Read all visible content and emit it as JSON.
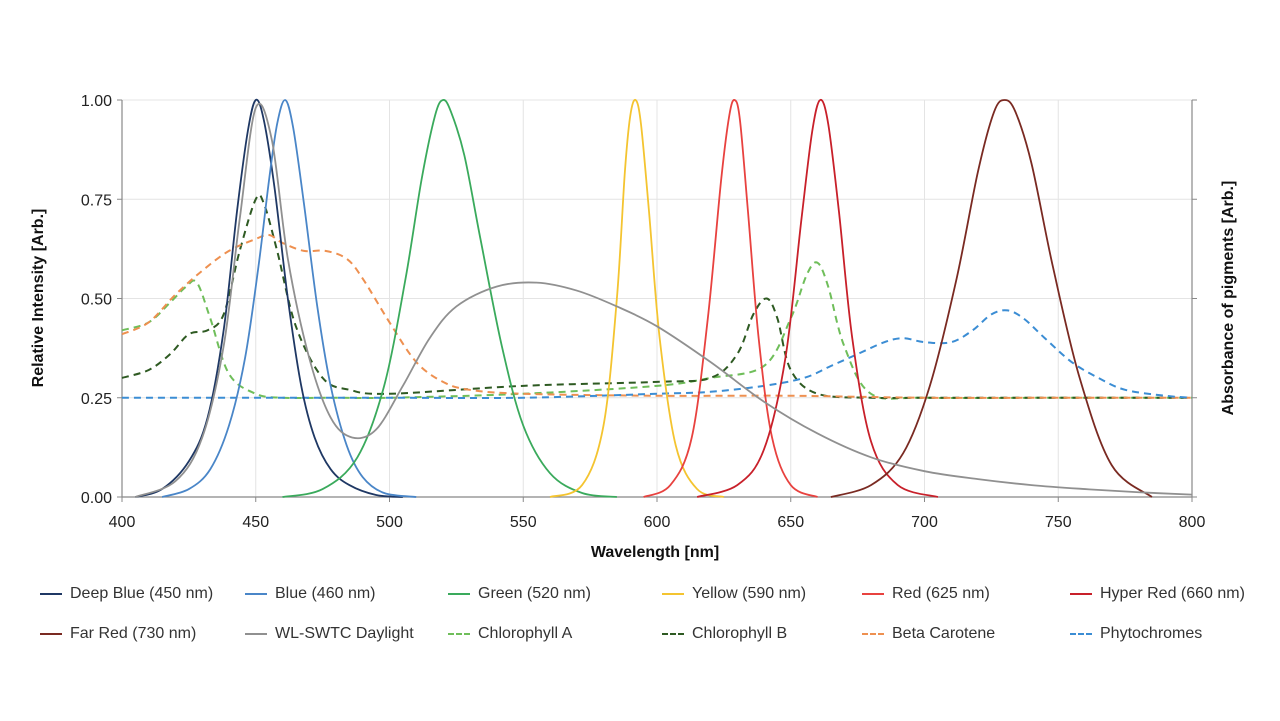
{
  "chart_data": {
    "type": "line",
    "title": "",
    "xlabel": "Wavelength [nm]",
    "ylabel": "Relative Intensity [Arb.]",
    "y2label": "Absorbance of pigments [Arb.]",
    "xlim": [
      400,
      800
    ],
    "ylim": [
      0,
      1
    ],
    "x_ticks": [
      400,
      450,
      500,
      550,
      600,
      650,
      700,
      750,
      800
    ],
    "x_tick_labels": [
      "400",
      "450",
      "500",
      "550",
      "600",
      "650",
      "700",
      "750",
      "800"
    ],
    "y_ticks": [
      0,
      0.25,
      0.5,
      0.75,
      1
    ],
    "y_tick_labels": [
      "0.00",
      "0.25",
      "0.50",
      "0.75",
      "1.00"
    ],
    "grid": true,
    "legend_position": "bottom",
    "series": [
      {
        "name": "Deep Blue (450 nm)",
        "color": "#1f3864",
        "dashed": false,
        "x": [
          405,
          415,
          425,
          432,
          438,
          443,
          447,
          450,
          453,
          457,
          462,
          467,
          472,
          478,
          485,
          495,
          505
        ],
        "y": [
          0,
          0.02,
          0.09,
          0.2,
          0.42,
          0.72,
          0.92,
          1.0,
          0.95,
          0.78,
          0.5,
          0.28,
          0.15,
          0.07,
          0.03,
          0.005,
          0
        ]
      },
      {
        "name": "Blue (460 nm)",
        "color": "#4a86c8",
        "dashed": false,
        "x": [
          415,
          425,
          433,
          440,
          446,
          451,
          455,
          458,
          461,
          464,
          468,
          473,
          478,
          484,
          490,
          498,
          510
        ],
        "y": [
          0,
          0.02,
          0.07,
          0.18,
          0.35,
          0.58,
          0.8,
          0.94,
          1.0,
          0.93,
          0.74,
          0.48,
          0.28,
          0.13,
          0.05,
          0.01,
          0
        ]
      },
      {
        "name": "Green (520 nm)",
        "color": "#3aaa5c",
        "dashed": false,
        "x": [
          460,
          475,
          488,
          498,
          506,
          512,
          517,
          520,
          523,
          528,
          534,
          542,
          550,
          560,
          572,
          585
        ],
        "y": [
          0,
          0.02,
          0.1,
          0.28,
          0.55,
          0.8,
          0.96,
          1.0,
          0.97,
          0.86,
          0.65,
          0.38,
          0.18,
          0.06,
          0.01,
          0
        ]
      },
      {
        "name": "Yellow (590 nm)",
        "color": "#f4c430",
        "dashed": false,
        "x": [
          560,
          572,
          580,
          585,
          588,
          590,
          592,
          594,
          597,
          601,
          607,
          615,
          625
        ],
        "y": [
          0,
          0.03,
          0.18,
          0.5,
          0.82,
          0.96,
          1.0,
          0.94,
          0.72,
          0.4,
          0.13,
          0.02,
          0
        ]
      },
      {
        "name": "Red (625 nm)",
        "color": "#e8423f",
        "dashed": false,
        "x": [
          595,
          605,
          613,
          619,
          624,
          627,
          629,
          631,
          634,
          638,
          643,
          650,
          660
        ],
        "y": [
          0,
          0.03,
          0.15,
          0.45,
          0.8,
          0.96,
          1.0,
          0.95,
          0.72,
          0.4,
          0.15,
          0.03,
          0
        ]
      },
      {
        "name": "Hyper Red (660 nm)",
        "color": "#c8202a",
        "dashed": false,
        "x": [
          615,
          630,
          640,
          648,
          654,
          658,
          661,
          664,
          668,
          673,
          680,
          690,
          705
        ],
        "y": [
          0,
          0.03,
          0.12,
          0.35,
          0.7,
          0.92,
          1.0,
          0.94,
          0.72,
          0.4,
          0.14,
          0.03,
          0
        ]
      },
      {
        "name": "Far Red (730 nm)",
        "color": "#7a2a22",
        "dashed": false,
        "x": [
          665,
          680,
          692,
          702,
          712,
          720,
          726,
          730,
          734,
          740,
          748,
          758,
          770,
          785
        ],
        "y": [
          0,
          0.03,
          0.11,
          0.28,
          0.55,
          0.82,
          0.97,
          1.0,
          0.97,
          0.84,
          0.58,
          0.3,
          0.08,
          0
        ]
      },
      {
        "name": "WL-SWTC Daylight",
        "color": "#909090",
        "dashed": false,
        "x": [
          405,
          420,
          430,
          438,
          444,
          450,
          456,
          462,
          470,
          478,
          486,
          495,
          505,
          515,
          525,
          540,
          555,
          570,
          585,
          600,
          620,
          640,
          660,
          680,
          700,
          720,
          740,
          760,
          780,
          800
        ],
        "y": [
          0,
          0.04,
          0.15,
          0.38,
          0.7,
          0.98,
          0.9,
          0.6,
          0.35,
          0.2,
          0.15,
          0.17,
          0.28,
          0.4,
          0.48,
          0.53,
          0.54,
          0.52,
          0.48,
          0.43,
          0.34,
          0.24,
          0.16,
          0.1,
          0.065,
          0.045,
          0.03,
          0.02,
          0.012,
          0.006
        ]
      },
      {
        "name": "Chlorophyll A",
        "color": "#6fbe5a",
        "dashed": true,
        "x": [
          400,
          410,
          418,
          424,
          428,
          433,
          440,
          450,
          460,
          480,
          500,
          550,
          600,
          620,
          640,
          650,
          656,
          660,
          664,
          670,
          680,
          700,
          750,
          800
        ],
        "y": [
          0.42,
          0.44,
          0.49,
          0.53,
          0.54,
          0.45,
          0.31,
          0.26,
          0.25,
          0.25,
          0.25,
          0.26,
          0.28,
          0.3,
          0.33,
          0.45,
          0.56,
          0.59,
          0.53,
          0.38,
          0.26,
          0.25,
          0.25,
          0.25
        ]
      },
      {
        "name": "Chlorophyll B",
        "color": "#2e5a22",
        "dashed": true,
        "x": [
          400,
          410,
          418,
          425,
          432,
          438,
          444,
          450,
          453,
          458,
          465,
          475,
          485,
          500,
          550,
          600,
          620,
          630,
          636,
          641,
          645,
          650,
          660,
          680,
          700,
          750,
          800
        ],
        "y": [
          0.3,
          0.32,
          0.36,
          0.41,
          0.42,
          0.46,
          0.62,
          0.75,
          0.74,
          0.62,
          0.43,
          0.3,
          0.27,
          0.26,
          0.28,
          0.29,
          0.3,
          0.36,
          0.46,
          0.5,
          0.45,
          0.32,
          0.26,
          0.25,
          0.25,
          0.25,
          0.25
        ]
      },
      {
        "name": "Beta Carotene",
        "color": "#ee9050",
        "dashed": true,
        "x": [
          400,
          410,
          420,
          430,
          440,
          450,
          455,
          460,
          468,
          476,
          484,
          490,
          500,
          510,
          520,
          530,
          550,
          600,
          650,
          700,
          750,
          800
        ],
        "y": [
          0.41,
          0.44,
          0.51,
          0.57,
          0.62,
          0.65,
          0.66,
          0.64,
          0.62,
          0.62,
          0.6,
          0.55,
          0.44,
          0.34,
          0.29,
          0.27,
          0.26,
          0.255,
          0.255,
          0.25,
          0.25,
          0.25
        ]
      },
      {
        "name": "Phytochromes",
        "color": "#3b8dd4",
        "dashed": true,
        "x": [
          400,
          450,
          500,
          550,
          600,
          620,
          640,
          655,
          665,
          675,
          685,
          692,
          700,
          710,
          718,
          725,
          731,
          737,
          745,
          755,
          765,
          775,
          790,
          800
        ],
        "y": [
          0.25,
          0.25,
          0.25,
          0.25,
          0.26,
          0.265,
          0.28,
          0.3,
          0.33,
          0.36,
          0.39,
          0.4,
          0.39,
          0.39,
          0.42,
          0.46,
          0.47,
          0.45,
          0.4,
          0.34,
          0.3,
          0.27,
          0.255,
          0.25
        ]
      }
    ]
  }
}
